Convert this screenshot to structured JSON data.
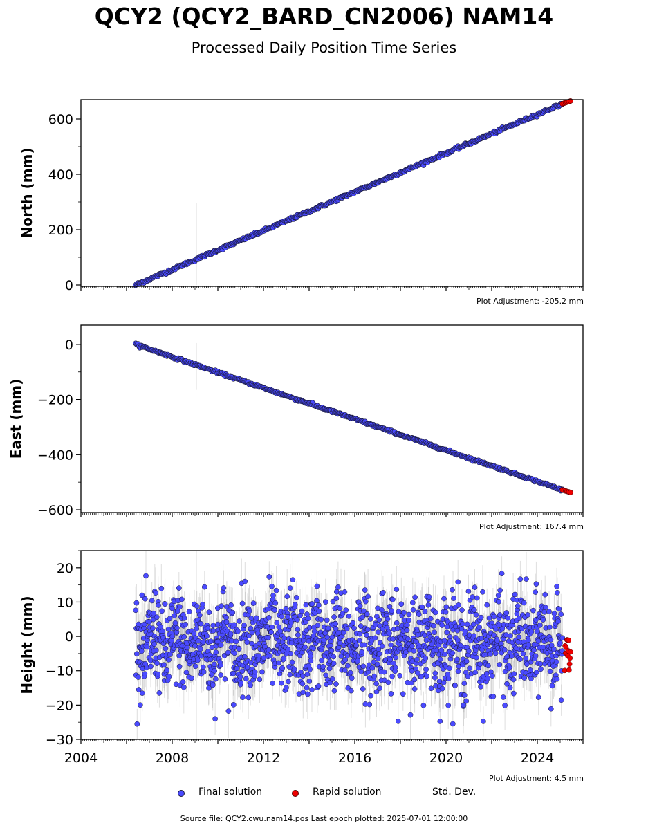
{
  "title": "QCY2 (QCY2_BARD_CN2006) NAM14",
  "subtitle": "Processed Daily Position Time Series",
  "colors": {
    "final": "#4a4aff",
    "final_edge": "#1a1a3a",
    "rapid": "#ee0000",
    "stddev": "#c8c8c8"
  },
  "legend": {
    "final": "Final solution",
    "rapid": "Rapid solution",
    "stddev": "Std. Dev."
  },
  "footer": "Source file: QCY2.cwu.nam14.pos  Last epoch plotted: 2025-07-01 12:00:00",
  "chart_data": [
    {
      "type": "scatter",
      "ylabel": "North (mm)",
      "adjustment": "Plot Adjustment: -205.2 mm",
      "xlim": [
        2004,
        2026
      ],
      "ylim": [
        -5,
        670
      ],
      "yticks": [
        0,
        200,
        400,
        600
      ],
      "xticks": [],
      "grid": false,
      "series": [
        {
          "name": "Final solution",
          "kind": "linear",
          "x": [
            2006.4,
            2025.1
          ],
          "y": [
            0,
            655
          ]
        },
        {
          "name": "Rapid solution",
          "kind": "linear",
          "x": [
            2025.1,
            2025.45
          ],
          "y": [
            655,
            665
          ]
        }
      ],
      "outlier_errorbar": {
        "x": 2009.05,
        "ylow": 0,
        "yhigh": 295
      }
    },
    {
      "type": "scatter",
      "ylabel": "East (mm)",
      "adjustment": "Plot Adjustment: 167.4 mm",
      "xlim": [
        2004,
        2026
      ],
      "ylim": [
        -610,
        70
      ],
      "yticks": [
        0,
        -200,
        -400,
        -600
      ],
      "xticks": [],
      "grid": false,
      "series": [
        {
          "name": "Final solution",
          "kind": "linear",
          "x": [
            2006.4,
            2025.1
          ],
          "y": [
            0,
            -528
          ]
        },
        {
          "name": "Rapid solution",
          "kind": "linear",
          "x": [
            2025.1,
            2025.45
          ],
          "y": [
            -528,
            -537
          ]
        }
      ],
      "outlier_errorbar": {
        "x": 2009.05,
        "ylow": -165,
        "yhigh": 5
      }
    },
    {
      "type": "scatter",
      "ylabel": "Height (mm)",
      "adjustment": "Plot Adjustment: 4.5 mm",
      "xlim": [
        2004,
        2026
      ],
      "ylim": [
        -30,
        25
      ],
      "yticks": [
        -30,
        -20,
        -10,
        0,
        10,
        20
      ],
      "xticks": [
        2004,
        2008,
        2012,
        2016,
        2020,
        2024
      ],
      "grid": false,
      "series": [
        {
          "name": "Final solution",
          "kind": "noise",
          "x": [
            2006.4,
            2025.1
          ],
          "mean": -2,
          "spread": 7,
          "max": 21.5,
          "min": -25.5
        },
        {
          "name": "Rapid solution",
          "kind": "noise",
          "x": [
            2025.2,
            2025.45
          ],
          "mean": -5,
          "spread": 3,
          "max": -1,
          "min": -10.5
        }
      ],
      "outlier_errorbar": {
        "x": 2009.05,
        "ylow": -30,
        "yhigh": 25
      }
    }
  ]
}
